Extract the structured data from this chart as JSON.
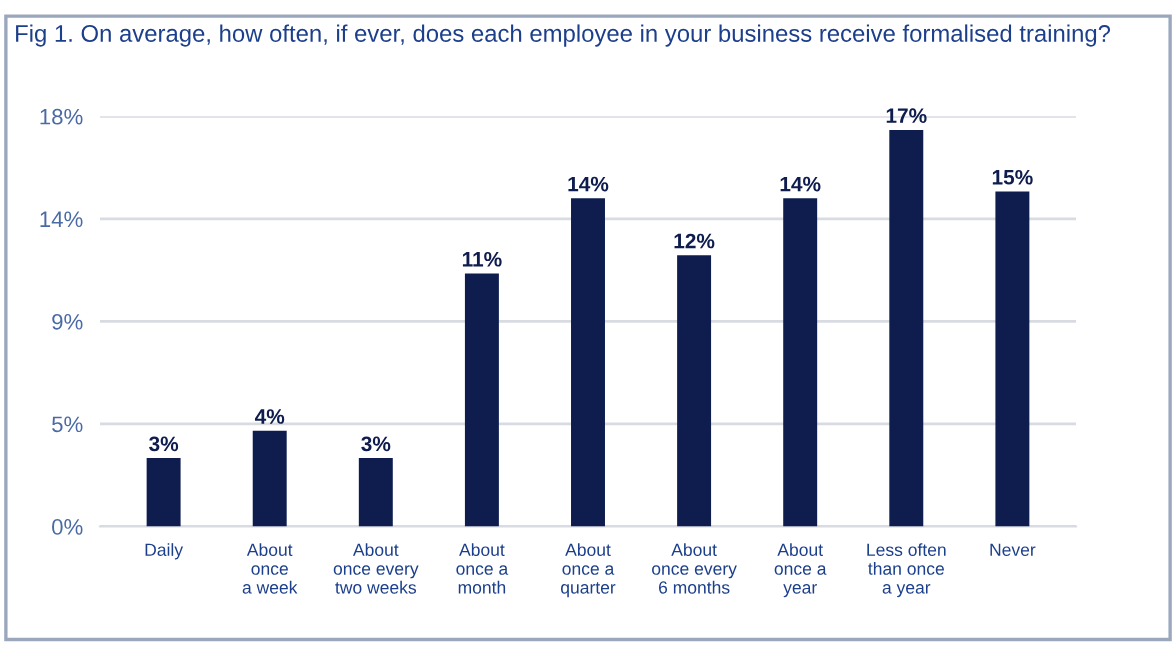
{
  "chart_data": {
    "type": "bar",
    "title": "Fig 1. On average, how often, if ever, does each employee in your business receive formalised training?",
    "categories": [
      "Daily",
      "About\nonce\na week",
      "About\nonce every\ntwo weeks",
      "About\nonce a\nmonth",
      "About\nonce a\nquarter",
      "About\nonce every\n6 months",
      "About\nonce a\nyear",
      "Less often\nthan once\na year",
      "Never"
    ],
    "values": [
      3.0,
      4.2,
      3.0,
      11.1,
      14.4,
      11.9,
      14.4,
      17.4,
      14.7
    ],
    "value_labels": [
      "3%",
      "4%",
      "3%",
      "11%",
      "14%",
      "12%",
      "14%",
      "17%",
      "15%"
    ],
    "color": "#0e1c4e",
    "ylim": [
      0,
      18
    ],
    "yticks": [
      {
        "value": 0,
        "label": "0%"
      },
      {
        "value": 4.5,
        "label": "5%"
      },
      {
        "value": 9,
        "label": "9%"
      },
      {
        "value": 13.5,
        "label": "14%"
      },
      {
        "value": 18,
        "label": "18%"
      }
    ],
    "grid": "y"
  }
}
